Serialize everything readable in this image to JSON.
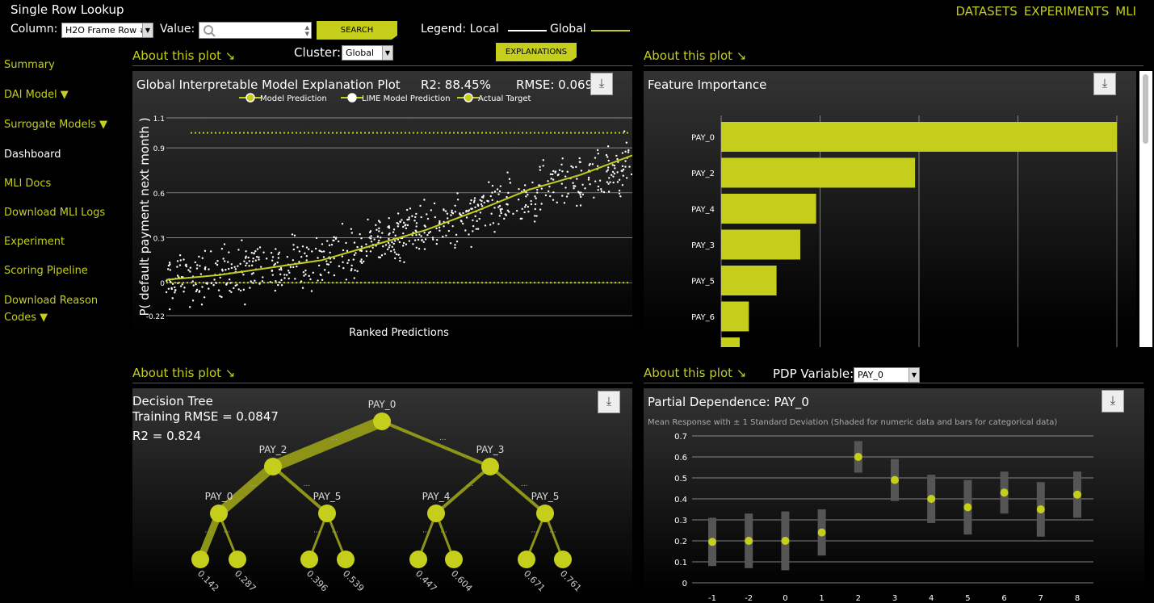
{
  "header": {
    "title": "Single Row Lookup",
    "column_label": "Column:",
    "column_value": "H2O Frame Row #",
    "value_label": "Value:",
    "search_label": "SEARCH",
    "legend_label": "Legend: Local",
    "legend_global": "Global",
    "cluster_label": "Cluster:",
    "cluster_value": "Global",
    "explanations_label": "EXPLANATIONS"
  },
  "nav": [
    "DATASETS",
    "EXPERIMENTS",
    "MLI"
  ],
  "sidebar": [
    {
      "label": "Summary"
    },
    {
      "label": "DAI Model ▼"
    },
    {
      "label": "Surrogate Models ▼"
    },
    {
      "label": "Dashboard"
    },
    {
      "label": "MLI Docs"
    },
    {
      "label": "Download MLI Logs"
    },
    {
      "label": "Experiment"
    },
    {
      "label": "Scoring Pipeline"
    },
    {
      "label": "Download Reason"
    },
    {
      "label": "Codes ▼"
    }
  ],
  "about_label": "About this plot ↘",
  "klime": {
    "title": "Global Interpretable Model Explanation Plot",
    "r2": "R2: 88.45%",
    "rmse": "RMSE: 0.069",
    "legend": [
      "Model Prediction",
      "LIME Model Prediction",
      "Actual Target"
    ],
    "ylabel": "P( default payment next month )",
    "xlabel": "Ranked Predictions",
    "yticks": [
      "1.1",
      "0.9",
      "0.6",
      "0.3",
      "0",
      "-0.22"
    ]
  },
  "fi": {
    "title": "Feature Importance"
  },
  "dt": {
    "title": "Decision Tree",
    "rmse": "Training RMSE = 0.0847",
    "r2": "R2 = 0.824"
  },
  "pdp": {
    "variable_label": "PDP Variable:",
    "variable_value": "PAY_0",
    "title": "Partial Dependence: PAY_0",
    "subtitle": "Mean Response with ± 1 Standard Deviation (Shaded for numeric data and bars for categorical data)"
  },
  "chart_data": [
    {
      "type": "scatter",
      "title": "Global Interpretable Model Explanation Plot",
      "xlabel": "Ranked Predictions",
      "ylabel": "P( default payment next month )",
      "ylim": [
        -0.22,
        1.1
      ],
      "yticks": [
        1.1,
        0.9,
        0.6,
        0.3,
        0,
        -0.22
      ],
      "series": [
        {
          "name": "Model Prediction",
          "trend": [
            0.02,
            0.05,
            0.1,
            0.15,
            0.25,
            0.35,
            0.48,
            0.62,
            0.72,
            0.85
          ]
        },
        {
          "name": "LIME Model Prediction",
          "trend": [
            0.03,
            0.06,
            0.11,
            0.17,
            0.26,
            0.36,
            0.47,
            0.6,
            0.7,
            0.8
          ]
        },
        {
          "name": "Actual Target",
          "levels": [
            0,
            1
          ]
        }
      ]
    },
    {
      "type": "bar",
      "title": "Feature Importance",
      "categories": [
        "PAY_0",
        "PAY_2",
        "PAY_4",
        "PAY_3",
        "PAY_5",
        "PAY_6"
      ],
      "values": [
        1.0,
        0.49,
        0.24,
        0.2,
        0.14,
        0.07
      ]
    },
    {
      "type": "tree",
      "title": "Decision Tree",
      "nodes": [
        "PAY_0",
        "PAY_2",
        "PAY_3",
        "PAY_0",
        "PAY_5",
        "PAY_4",
        "PAY_5"
      ],
      "leaves": [
        "0.142",
        "0.287",
        "0.396",
        "0.539",
        "0.447",
        "0.604",
        "0.671",
        "0.761"
      ]
    },
    {
      "type": "scatter",
      "title": "Partial Dependence: PAY_0",
      "categories": [
        "-1",
        "-2",
        "0",
        "1",
        "2",
        "3",
        "4",
        "5",
        "6",
        "7",
        "8"
      ],
      "values": [
        0.195,
        0.2,
        0.2,
        0.24,
        0.6,
        0.49,
        0.4,
        0.36,
        0.43,
        0.35,
        0.42
      ],
      "std": [
        0.115,
        0.13,
        0.14,
        0.11,
        0.075,
        0.1,
        0.115,
        0.13,
        0.1,
        0.13,
        0.11
      ],
      "ylim": [
        0,
        0.7
      ],
      "yticks": [
        0,
        0.1,
        0.2,
        0.3,
        0.4,
        0.5,
        0.6,
        0.7
      ]
    }
  ]
}
